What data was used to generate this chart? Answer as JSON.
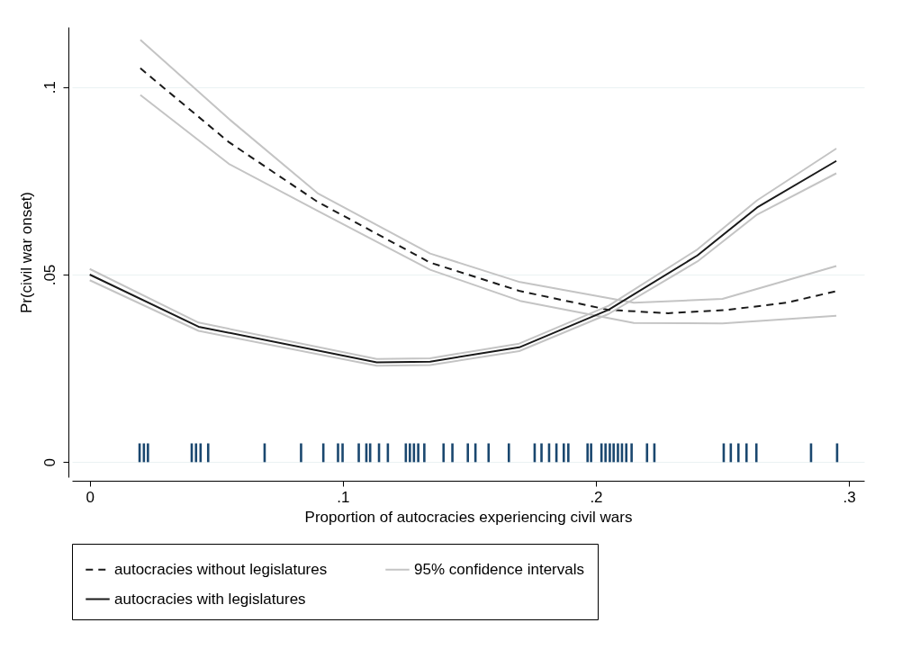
{
  "chart_data": {
    "type": "line",
    "xlabel": "Proportion of autocracies experiencing civil wars",
    "ylabel": "Pr(civil war onset)",
    "xlim": [
      -0.007,
      0.306
    ],
    "ylim": [
      -0.004,
      0.116
    ],
    "xticks": [
      0,
      {
        "value": 0.1,
        "label": ".1"
      },
      {
        "value": 0.2,
        "label": ".2"
      },
      {
        "value": 0.3,
        "label": ".3"
      }
    ],
    "yticks": [
      0,
      {
        "value": 0.05,
        "label": ".05"
      },
      {
        "value": 0.1,
        "label": ".1"
      }
    ],
    "grid": "y",
    "legend": "bottom",
    "marker": "none",
    "series": [
      {
        "name": "autocracies without legislatures",
        "color": "#1a1a1a",
        "line_style": "dashed",
        "x": [
          0.02,
          0.055,
          0.09,
          0.1345,
          0.17,
          0.205,
          0.2285,
          0.252,
          0.2754,
          0.295
        ],
        "values": [
          0.105,
          0.0853,
          0.0694,
          0.0532,
          0.0456,
          0.0406,
          0.0397,
          0.0406,
          0.0425,
          0.0456
        ]
      },
      {
        "name": "95% confidence intervals",
        "color": "#c4c4c4",
        "line_style": "solid",
        "x": [
          0.02,
          0.055,
          0.09,
          0.1345,
          0.17,
          0.215,
          0.25,
          0.295
        ],
        "values": [
          0.1126,
          0.0915,
          0.0717,
          0.0556,
          0.048,
          0.0425,
          0.0435,
          0.0523
        ]
      },
      {
        "color": "#c4c4c4",
        "line_style": "solid",
        "x": [
          0.02,
          0.055,
          0.09,
          0.1345,
          0.17,
          0.215,
          0.25,
          0.295
        ],
        "values": [
          0.0979,
          0.0795,
          0.067,
          0.0513,
          0.043,
          0.0371,
          0.037,
          0.039
        ]
      },
      {
        "name": "autocracies with legislatures",
        "color": "#1a1a1a",
        "line_style": "solid",
        "x": [
          0,
          0.043,
          0.1134,
          0.1345,
          0.1697,
          0.205,
          0.2401,
          0.2637,
          0.295
        ],
        "values": [
          0.05,
          0.0361,
          0.0266,
          0.0268,
          0.0306,
          0.0406,
          0.0551,
          0.0679,
          0.0803
        ]
      },
      {
        "color": "#c4c4c4",
        "line_style": "solid",
        "x": [
          0,
          0.043,
          0.1134,
          0.1345,
          0.1697,
          0.205,
          0.2401,
          0.2637,
          0.295
        ],
        "values": [
          0.0515,
          0.0372,
          0.0275,
          0.0277,
          0.0316,
          0.0417,
          0.0567,
          0.0698,
          0.0836
        ]
      },
      {
        "color": "#c4c4c4",
        "line_style": "solid",
        "x": [
          0,
          0.043,
          0.1134,
          0.1345,
          0.1697,
          0.205,
          0.2401,
          0.2637,
          0.295
        ],
        "values": [
          0.0485,
          0.035,
          0.0257,
          0.0259,
          0.0296,
          0.0395,
          0.0535,
          0.066,
          0.077
        ]
      },
      {
        "type": "bar",
        "color": "#1a476f",
        "x": [
          0.0197,
          0.0214,
          0.023,
          0.0403,
          0.042,
          0.0438,
          0.0468,
          0.0691,
          0.0835,
          0.0923,
          0.0981,
          0.0999,
          0.1063,
          0.1093,
          0.1108,
          0.1143,
          0.1178,
          0.1249,
          0.1265,
          0.1281,
          0.1298,
          0.1322,
          0.1398,
          0.1433,
          0.1494,
          0.1524,
          0.1576,
          0.1656,
          0.1758,
          0.1785,
          0.1815,
          0.1844,
          0.1873,
          0.1891,
          0.1967,
          0.1981,
          0.2022,
          0.2038,
          0.2055,
          0.207,
          0.2087,
          0.2103,
          0.212,
          0.2141,
          0.2202,
          0.2231,
          0.2505,
          0.2533,
          0.2563,
          0.2595,
          0.2634,
          0.285,
          0.2953
        ],
        "values": [
          0.005,
          0.005,
          0.005,
          0.005,
          0.005,
          0.005,
          0.005,
          0.005,
          0.005,
          0.005,
          0.005,
          0.005,
          0.005,
          0.005,
          0.005,
          0.005,
          0.005,
          0.005,
          0.005,
          0.005,
          0.005,
          0.005,
          0.005,
          0.005,
          0.005,
          0.005,
          0.005,
          0.005,
          0.005,
          0.005,
          0.005,
          0.005,
          0.005,
          0.005,
          0.005,
          0.005,
          0.005,
          0.005,
          0.005,
          0.005,
          0.005,
          0.005,
          0.005,
          0.005,
          0.005,
          0.005,
          0.005,
          0.005,
          0.005,
          0.005,
          0.005,
          0.005,
          0.005
        ]
      }
    ]
  }
}
